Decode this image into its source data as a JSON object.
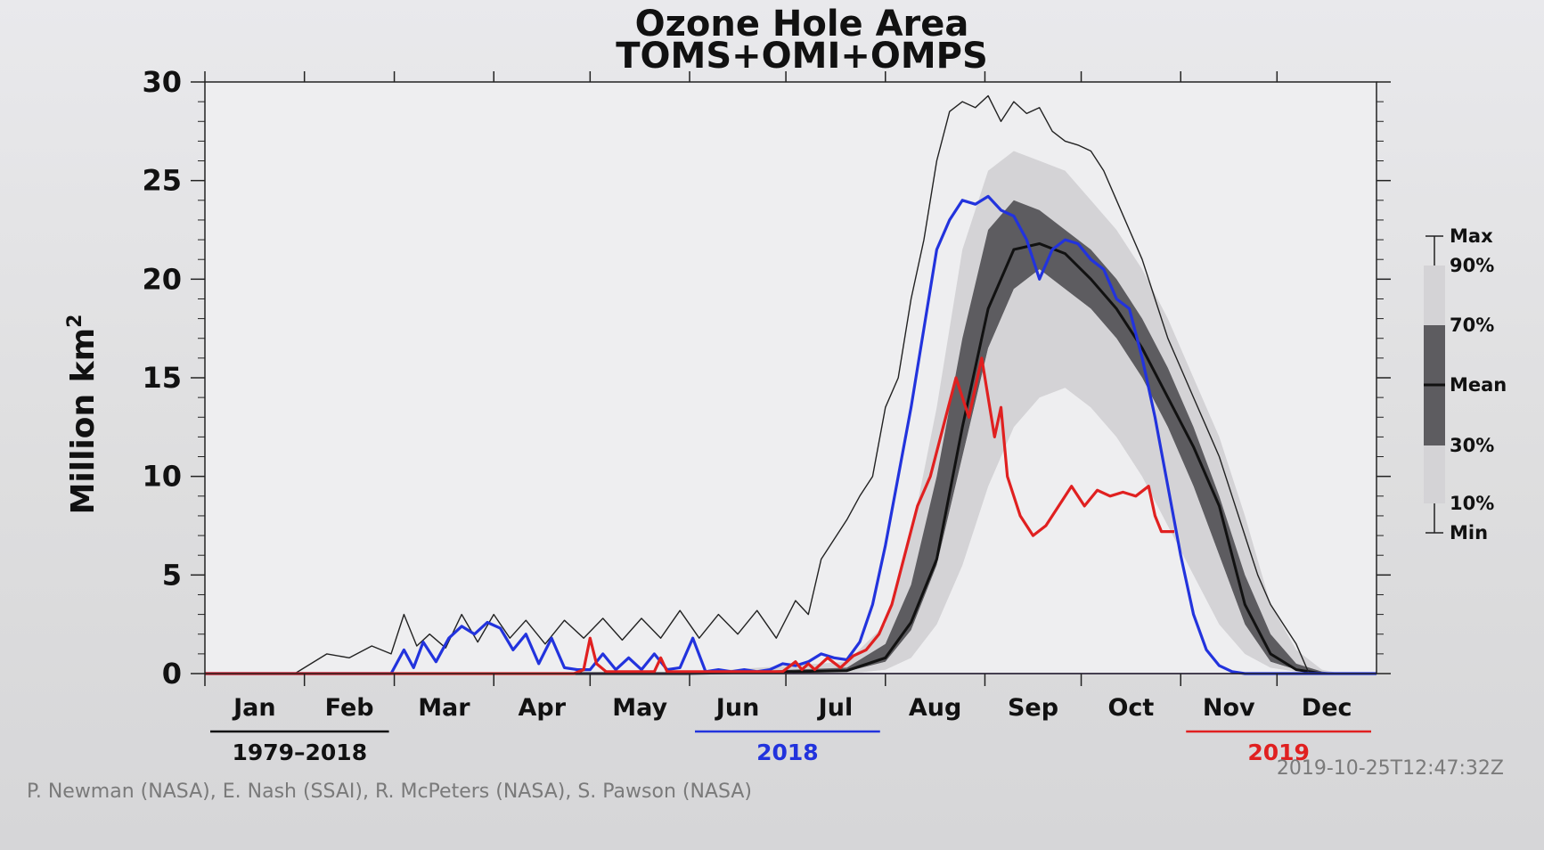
{
  "chart_data": {
    "type": "area",
    "title": "Ozone Hole Area",
    "subtitle": "TOMS+OMI+OMPS",
    "ylabel": "Million km",
    "ylabel_superscript": "2",
    "ylim": [
      0,
      30
    ],
    "yticks": [
      0,
      5,
      10,
      15,
      20,
      25,
      30
    ],
    "ytick_labels": [
      "0",
      "5",
      "10",
      "15",
      "20",
      "25",
      "30"
    ],
    "xlim": [
      0,
      365
    ],
    "months": [
      "Jan",
      "Feb",
      "Mar",
      "Apr",
      "May",
      "Jun",
      "Jul",
      "Aug",
      "Sep",
      "Oct",
      "Nov",
      "Dec"
    ],
    "month_starts": [
      0,
      31,
      59,
      90,
      120,
      151,
      181,
      212,
      243,
      273,
      304,
      334
    ],
    "grid": false,
    "legend": {
      "placement": "right",
      "labels": [
        "Max",
        "90%",
        "70%",
        "Mean",
        "30%",
        "10%",
        "Min"
      ]
    },
    "periods": [
      {
        "label": "1979–2018",
        "color": "#111111",
        "under_months": [
          "Jan",
          "Feb"
        ]
      },
      {
        "label": "2018",
        "color": "#2233dd",
        "under_months": [
          "Jun",
          "Jul"
        ]
      },
      {
        "label": "2019",
        "color": "#e02020",
        "under_months": [
          "Nov",
          "Dec"
        ]
      }
    ],
    "bands": {
      "day": [
        0,
        150,
        200,
        212,
        220,
        228,
        236,
        244,
        252,
        260,
        268,
        276,
        284,
        292,
        300,
        308,
        316,
        324,
        332,
        340,
        348,
        354,
        365
      ],
      "p10": [
        0,
        0,
        0,
        0.2,
        0.8,
        2.5,
        5.5,
        9.5,
        12.5,
        14.0,
        14.5,
        13.5,
        12.0,
        10.0,
        7.5,
        5.0,
        2.5,
        1.0,
        0.3,
        0.1,
        0,
        0,
        0
      ],
      "p30": [
        0,
        0,
        0.1,
        0.6,
        2.2,
        5.5,
        11.0,
        16.5,
        19.5,
        20.5,
        19.5,
        18.5,
        17.0,
        15.0,
        12.5,
        9.5,
        6.0,
        2.5,
        0.6,
        0.2,
        0,
        0,
        0
      ],
      "p70": [
        0,
        0,
        0.3,
        1.5,
        4.5,
        10.0,
        17.0,
        22.5,
        24.0,
        23.5,
        22.5,
        21.5,
        20.0,
        18.0,
        15.5,
        12.5,
        9.0,
        5.0,
        2.0,
        0.5,
        0.1,
        0,
        0
      ],
      "p90": [
        0,
        0.05,
        0.6,
        2.5,
        7.0,
        13.5,
        21.5,
        25.5,
        26.5,
        26.0,
        25.5,
        24.0,
        22.5,
        20.5,
        18.0,
        15.0,
        12.0,
        8.0,
        3.5,
        1.2,
        0.2,
        0,
        0
      ],
      "mean": [
        0,
        0,
        0.15,
        0.8,
        2.6,
        5.8,
        12.5,
        18.5,
        21.5,
        21.8,
        21.3,
        20.0,
        18.5,
        16.5,
        14.0,
        11.5,
        8.5,
        3.5,
        1.0,
        0.2,
        0,
        0,
        0
      ]
    },
    "series": [
      {
        "name": "Max",
        "color": "#222222",
        "day": [
          0,
          28,
          38,
          45,
          52,
          58,
          62,
          66,
          70,
          75,
          80,
          85,
          90,
          95,
          100,
          106,
          112,
          118,
          124,
          130,
          136,
          142,
          148,
          154,
          160,
          166,
          172,
          178,
          184,
          188,
          192,
          196,
          200,
          204,
          208,
          212,
          216,
          220,
          224,
          228,
          232,
          236,
          240,
          244,
          248,
          252,
          256,
          260,
          264,
          268,
          272,
          276,
          280,
          284,
          288,
          292,
          296,
          300,
          304,
          308,
          312,
          316,
          320,
          324,
          328,
          332,
          336,
          340,
          344,
          348,
          352,
          356,
          360,
          365
        ],
        "value": [
          0,
          0,
          1.0,
          0.8,
          1.4,
          1.0,
          3.0,
          1.4,
          2.0,
          1.3,
          3.0,
          1.6,
          3.0,
          1.8,
          2.7,
          1.5,
          2.7,
          1.8,
          2.8,
          1.7,
          2.8,
          1.8,
          3.2,
          1.8,
          3.0,
          2.0,
          3.2,
          1.8,
          3.7,
          3.0,
          5.8,
          6.8,
          7.8,
          9.0,
          10.0,
          13.5,
          15.0,
          19.0,
          22.0,
          26.0,
          28.5,
          29.0,
          28.7,
          29.3,
          28.0,
          29.0,
          28.4,
          28.7,
          27.5,
          27.0,
          26.8,
          26.5,
          25.5,
          24.0,
          22.5,
          21.0,
          19.0,
          17.0,
          15.5,
          14.0,
          12.5,
          11.0,
          9.0,
          7.0,
          5.0,
          3.5,
          2.5,
          1.5,
          0,
          0,
          0,
          0,
          0,
          0
        ]
      },
      {
        "name": "Min",
        "color": "#7a4fd0",
        "day": [
          0,
          365
        ],
        "value": [
          0,
          0
        ]
      },
      {
        "name": "2018",
        "color": "#2233dd",
        "day": [
          0,
          58,
          62,
          65,
          68,
          72,
          76,
          80,
          84,
          88,
          92,
          96,
          100,
          104,
          108,
          112,
          116,
          120,
          124,
          128,
          132,
          136,
          140,
          144,
          148,
          152,
          156,
          160,
          164,
          168,
          172,
          176,
          180,
          184,
          188,
          192,
          196,
          200,
          204,
          208,
          212,
          216,
          220,
          224,
          228,
          232,
          236,
          240,
          244,
          248,
          252,
          256,
          260,
          264,
          268,
          272,
          276,
          280,
          284,
          288,
          292,
          296,
          300,
          304,
          308,
          312,
          316,
          320,
          324,
          328,
          332,
          336,
          340,
          365
        ],
        "value": [
          0,
          0,
          1.2,
          0.3,
          1.6,
          0.6,
          1.8,
          2.4,
          2.0,
          2.6,
          2.3,
          1.2,
          2.0,
          0.5,
          1.8,
          0.3,
          0.2,
          0.2,
          1.0,
          0.2,
          0.8,
          0.2,
          1.0,
          0.2,
          0.3,
          1.8,
          0.1,
          0.2,
          0.1,
          0.2,
          0.1,
          0.2,
          0.5,
          0.4,
          0.6,
          1.0,
          0.8,
          0.7,
          1.6,
          3.5,
          6.5,
          10.0,
          13.5,
          17.5,
          21.5,
          23.0,
          24.0,
          23.8,
          24.2,
          23.5,
          23.2,
          22.0,
          20.0,
          21.5,
          22.0,
          21.8,
          21.0,
          20.5,
          19.0,
          18.5,
          16.0,
          13.0,
          9.5,
          6.0,
          3.0,
          1.2,
          0.4,
          0.1,
          0,
          0,
          0,
          0,
          0,
          0
        ]
      },
      {
        "name": "2019",
        "color": "#e02020",
        "day": [
          0,
          115,
          118,
          120,
          122,
          125,
          140,
          142,
          144,
          160,
          180,
          184,
          186,
          188,
          190,
          194,
          198,
          202,
          206,
          210,
          214,
          218,
          222,
          226,
          230,
          234,
          238,
          242,
          246,
          248,
          250,
          254,
          258,
          262,
          266,
          270,
          274,
          278,
          282,
          286,
          290,
          294,
          296,
          298,
          302
        ],
        "value": [
          0,
          0,
          0.2,
          1.8,
          0.5,
          0.1,
          0.1,
          0.8,
          0.1,
          0.1,
          0.1,
          0.6,
          0.2,
          0.5,
          0.2,
          0.8,
          0.3,
          0.9,
          1.2,
          2.0,
          3.5,
          6.0,
          8.5,
          10.0,
          12.5,
          15.0,
          13.0,
          16.0,
          12.0,
          13.5,
          10.0,
          8.0,
          7.0,
          7.5,
          8.5,
          9.5,
          8.5,
          9.3,
          9.0,
          9.2,
          9.0,
          9.5,
          8.0,
          7.2,
          7.2
        ]
      }
    ]
  },
  "credit": "P. Newman (NASA), E. Nash (SSAI), R. McPeters (NASA), S. Pawson (NASA)",
  "timestamp": "2019-10-25T12:47:32Z",
  "colors": {
    "plot_bg": "#eeeef0",
    "band_outer": "#d4d3d6",
    "band_inner": "#5d5c60",
    "band_center": "#c6c5c9"
  }
}
